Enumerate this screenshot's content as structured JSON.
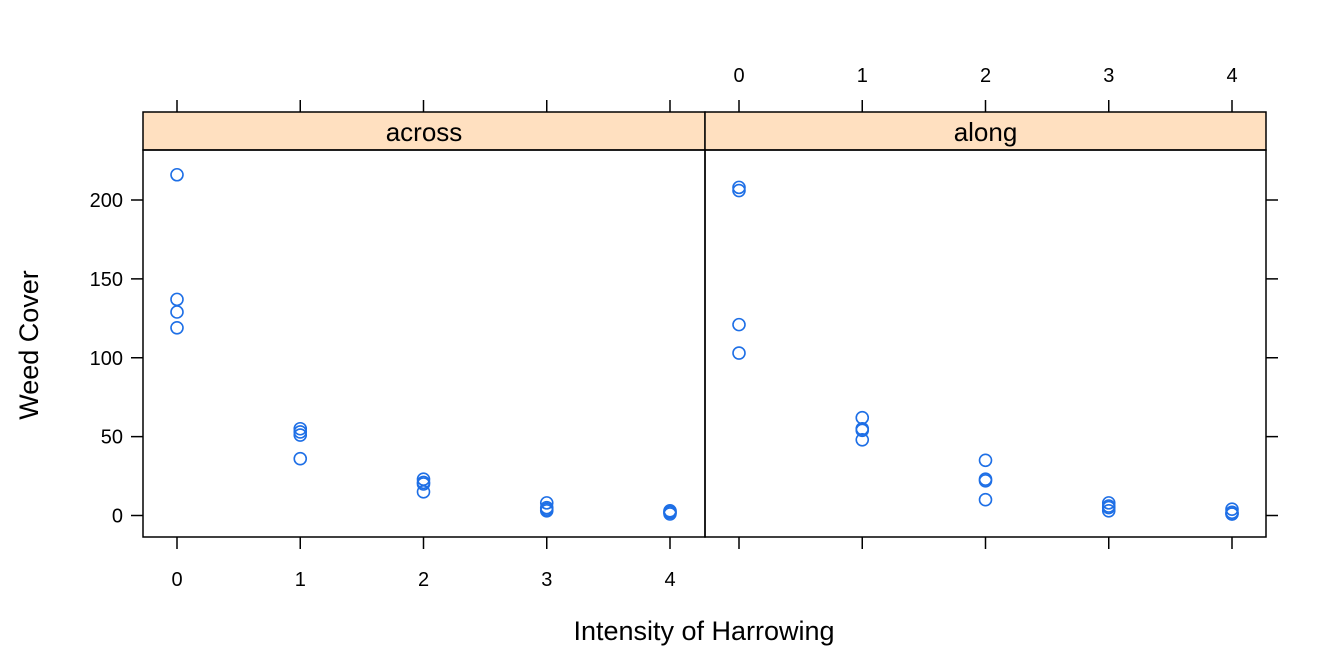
{
  "chart_data": {
    "type": "scatter",
    "layout": "trellis, 2 panels side by side",
    "xlabel": "Intensity of Harrowing",
    "ylabel": "Weed Cover",
    "x_ticks": [
      0,
      1,
      2,
      3,
      4
    ],
    "y_ticks": [
      0,
      50,
      100,
      150,
      200
    ],
    "ylim": [
      -14,
      231
    ],
    "xlim": [
      -0.28,
      4.28
    ],
    "grid": false,
    "colors": {
      "points": "#1e6fe6",
      "strip": "#ffe0c0",
      "frame": "#000000"
    },
    "panels": [
      {
        "name": "across",
        "points": [
          {
            "x": 0,
            "y": 216
          },
          {
            "x": 0,
            "y": 137
          },
          {
            "x": 0,
            "y": 129
          },
          {
            "x": 0,
            "y": 119
          },
          {
            "x": 1,
            "y": 55
          },
          {
            "x": 1,
            "y": 53
          },
          {
            "x": 1,
            "y": 51
          },
          {
            "x": 1,
            "y": 36
          },
          {
            "x": 2,
            "y": 23
          },
          {
            "x": 2,
            "y": 21
          },
          {
            "x": 2,
            "y": 20
          },
          {
            "x": 2,
            "y": 15
          },
          {
            "x": 3,
            "y": 8
          },
          {
            "x": 3,
            "y": 5
          },
          {
            "x": 3,
            "y": 4
          },
          {
            "x": 3,
            "y": 3
          },
          {
            "x": 4,
            "y": 3
          },
          {
            "x": 4,
            "y": 2
          },
          {
            "x": 4,
            "y": 2
          },
          {
            "x": 4,
            "y": 1
          }
        ]
      },
      {
        "name": "along",
        "points": [
          {
            "x": 0,
            "y": 208
          },
          {
            "x": 0,
            "y": 206
          },
          {
            "x": 0,
            "y": 121
          },
          {
            "x": 0,
            "y": 103
          },
          {
            "x": 1,
            "y": 62
          },
          {
            "x": 1,
            "y": 55
          },
          {
            "x": 1,
            "y": 54
          },
          {
            "x": 1,
            "y": 48
          },
          {
            "x": 2,
            "y": 35
          },
          {
            "x": 2,
            "y": 23
          },
          {
            "x": 2,
            "y": 22
          },
          {
            "x": 2,
            "y": 10
          },
          {
            "x": 3,
            "y": 8
          },
          {
            "x": 3,
            "y": 6
          },
          {
            "x": 3,
            "y": 5
          },
          {
            "x": 3,
            "y": 3
          },
          {
            "x": 4,
            "y": 4
          },
          {
            "x": 4,
            "y": 2
          },
          {
            "x": 4,
            "y": 1
          },
          {
            "x": 4,
            "y": 1
          }
        ]
      }
    ]
  }
}
